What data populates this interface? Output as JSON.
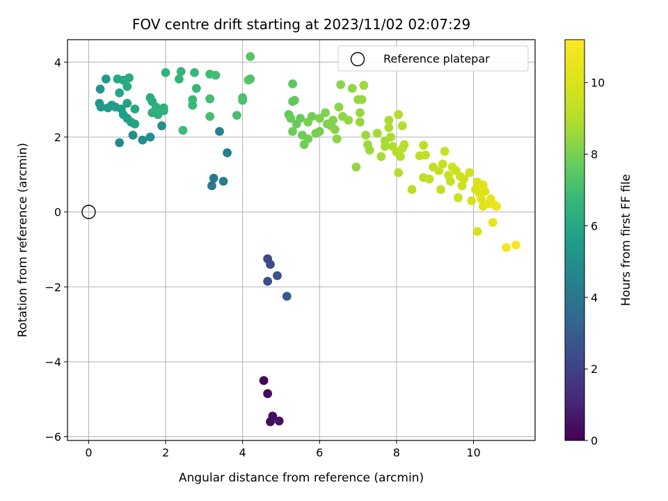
{
  "chart_data": {
    "type": "scatter",
    "title": "FOV centre drift starting at 2023/11/02 02:07:29",
    "xlabel": "Angular distance from reference (arcmin)",
    "ylabel": "Rotation from reference (arcmin)",
    "xlim": [
      -0.55,
      11.6
    ],
    "ylim": [
      -6.1,
      4.6
    ],
    "xticks": [
      0,
      2,
      4,
      6,
      8,
      10
    ],
    "yticks": [
      -6,
      -4,
      -2,
      0,
      2,
      4
    ],
    "grid": true,
    "legend": {
      "placement": "top-right",
      "entries": [
        "Reference platepar"
      ]
    },
    "reference": {
      "x": 0,
      "y": 0
    },
    "colorbar": {
      "label": "Hours from first FF file",
      "range": [
        0,
        11.2
      ],
      "ticks": [
        0,
        2,
        4,
        6,
        8,
        10
      ],
      "colormap": "viridis"
    },
    "series": [
      {
        "points": [
          [
            4.55,
            -4.5,
            0.1
          ],
          [
            4.65,
            -4.85,
            0.2
          ],
          [
            4.72,
            -5.6,
            0.3
          ],
          [
            4.78,
            -5.45,
            0.4
          ],
          [
            4.95,
            -5.58,
            0.5
          ],
          [
            4.65,
            -1.25,
            2.2
          ],
          [
            4.72,
            -1.4,
            2.3
          ],
          [
            4.65,
            -1.85,
            2.5
          ],
          [
            4.9,
            -1.7,
            2.6
          ],
          [
            5.15,
            -2.25,
            2.8
          ],
          [
            3.2,
            0.7,
            4.0
          ],
          [
            3.25,
            0.9,
            4.1
          ],
          [
            3.5,
            0.82,
            4.2
          ],
          [
            3.6,
            1.58,
            4.3
          ],
          [
            3.4,
            2.15,
            4.5
          ],
          [
            0.8,
            1.85,
            4.8
          ],
          [
            1.4,
            1.92,
            4.9
          ],
          [
            1.6,
            2.0,
            5.0
          ],
          [
            1.15,
            2.05,
            5.0
          ],
          [
            1.9,
            2.3,
            5.1
          ],
          [
            0.3,
            3.28,
            5.2
          ],
          [
            0.45,
            3.55,
            5.3
          ],
          [
            0.28,
            2.9,
            5.3
          ],
          [
            0.32,
            2.8,
            5.4
          ],
          [
            0.5,
            2.78,
            5.4
          ],
          [
            0.6,
            2.85,
            5.5
          ],
          [
            0.7,
            2.8,
            5.5
          ],
          [
            0.85,
            2.75,
            5.6
          ],
          [
            0.9,
            2.6,
            5.6
          ],
          [
            1.0,
            2.5,
            5.7
          ],
          [
            1.1,
            2.4,
            5.7
          ],
          [
            1.2,
            2.35,
            5.8
          ],
          [
            1.0,
            2.9,
            5.8
          ],
          [
            1.2,
            2.75,
            5.9
          ],
          [
            0.8,
            3.18,
            5.9
          ],
          [
            0.9,
            3.52,
            6.0
          ],
          [
            0.75,
            3.55,
            6.0
          ],
          [
            1.0,
            3.35,
            6.1
          ],
          [
            1.05,
            3.58,
            6.1
          ],
          [
            1.6,
            3.05,
            6.2
          ],
          [
            1.65,
            2.95,
            6.2
          ],
          [
            1.75,
            2.8,
            6.3
          ],
          [
            1.65,
            2.65,
            6.3
          ],
          [
            1.8,
            2.6,
            6.4
          ],
          [
            1.95,
            2.7,
            6.4
          ],
          [
            1.95,
            2.78,
            6.5
          ],
          [
            2.0,
            3.72,
            6.5
          ],
          [
            2.35,
            3.55,
            6.6
          ],
          [
            2.4,
            3.75,
            6.6
          ],
          [
            2.75,
            3.72,
            6.7
          ],
          [
            2.8,
            3.3,
            6.7
          ],
          [
            2.7,
            3.0,
            6.8
          ],
          [
            2.7,
            2.85,
            6.8
          ],
          [
            2.45,
            2.18,
            6.9
          ],
          [
            3.15,
            3.68,
            6.9
          ],
          [
            3.3,
            3.65,
            7.0
          ],
          [
            3.15,
            3.02,
            7.0
          ],
          [
            3.15,
            2.55,
            7.1
          ],
          [
            3.85,
            2.58,
            7.1
          ],
          [
            4.0,
            3.05,
            7.2
          ],
          [
            4.0,
            2.98,
            7.2
          ],
          [
            4.15,
            3.52,
            7.3
          ],
          [
            4.2,
            3.55,
            7.3
          ],
          [
            4.2,
            4.15,
            7.4
          ],
          [
            5.3,
            3.42,
            7.5
          ],
          [
            5.3,
            2.95,
            7.5
          ],
          [
            5.35,
            2.98,
            7.6
          ],
          [
            5.2,
            2.6,
            7.6
          ],
          [
            5.25,
            2.5,
            7.7
          ],
          [
            5.4,
            2.35,
            7.7
          ],
          [
            5.5,
            2.5,
            7.7
          ],
          [
            5.3,
            2.15,
            7.8
          ],
          [
            5.55,
            2.05,
            7.8
          ],
          [
            5.6,
            1.8,
            7.9
          ],
          [
            5.7,
            1.95,
            7.9
          ],
          [
            5.8,
            2.55,
            7.9
          ],
          [
            5.7,
            2.4,
            8.0
          ],
          [
            5.9,
            2.1,
            8.0
          ],
          [
            6.0,
            2.15,
            8.0
          ],
          [
            6.0,
            2.5,
            8.1
          ],
          [
            6.15,
            2.65,
            8.1
          ],
          [
            6.2,
            2.35,
            8.1
          ],
          [
            6.3,
            2.3,
            8.2
          ],
          [
            6.35,
            2.45,
            8.2
          ],
          [
            6.4,
            2.2,
            8.2
          ],
          [
            6.45,
            1.95,
            8.3
          ],
          [
            6.5,
            2.8,
            8.3
          ],
          [
            6.55,
            3.4,
            8.3
          ],
          [
            6.6,
            2.55,
            8.3
          ],
          [
            6.75,
            2.45,
            8.4
          ],
          [
            6.85,
            3.3,
            8.4
          ],
          [
            6.95,
            1.2,
            8.4
          ],
          [
            7.0,
            3.0,
            8.4
          ],
          [
            7.05,
            2.65,
            8.5
          ],
          [
            7.1,
            3.0,
            8.5
          ],
          [
            7.05,
            2.4,
            8.5
          ],
          [
            7.15,
            3.38,
            8.6
          ],
          [
            7.2,
            2.05,
            8.6
          ],
          [
            7.25,
            1.8,
            8.6
          ],
          [
            7.3,
            1.65,
            8.6
          ],
          [
            7.5,
            2.1,
            8.7
          ],
          [
            7.6,
            1.48,
            8.7
          ],
          [
            7.7,
            1.9,
            8.7
          ],
          [
            7.7,
            1.75,
            8.8
          ],
          [
            7.8,
            2.45,
            8.8
          ],
          [
            7.85,
            2.0,
            8.8
          ],
          [
            7.8,
            2.25,
            8.8
          ],
          [
            7.9,
            1.75,
            8.9
          ],
          [
            8.05,
            2.6,
            8.9
          ],
          [
            8.0,
            1.6,
            8.9
          ],
          [
            8.05,
            1.05,
            9.0
          ],
          [
            8.1,
            1.48,
            9.0
          ],
          [
            8.15,
            2.3,
            9.0
          ],
          [
            8.15,
            1.7,
            9.1
          ],
          [
            8.2,
            1.8,
            9.1
          ],
          [
            8.4,
            0.6,
            9.1
          ],
          [
            8.6,
            1.5,
            9.2
          ],
          [
            8.7,
            1.78,
            9.2
          ],
          [
            8.7,
            0.92,
            9.2
          ],
          [
            8.75,
            1.52,
            9.3
          ],
          [
            8.85,
            0.88,
            9.3
          ],
          [
            8.95,
            1.2,
            9.3
          ],
          [
            9.1,
            1.1,
            9.4
          ],
          [
            9.15,
            0.6,
            9.4
          ],
          [
            9.2,
            1.28,
            9.4
          ],
          [
            9.25,
            1.62,
            9.5
          ],
          [
            9.35,
            0.98,
            9.5
          ],
          [
            9.4,
            0.82,
            9.5
          ],
          [
            9.45,
            1.2,
            9.6
          ],
          [
            9.55,
            1.1,
            9.6
          ],
          [
            9.6,
            0.38,
            9.6
          ],
          [
            9.65,
            0.95,
            9.7
          ],
          [
            9.7,
            0.7,
            9.7
          ],
          [
            9.75,
            0.88,
            9.7
          ],
          [
            9.9,
            1.05,
            9.8
          ],
          [
            9.95,
            0.3,
            9.8
          ],
          [
            10.05,
            0.6,
            9.9
          ],
          [
            10.1,
            -0.52,
            9.9
          ],
          [
            10.1,
            0.8,
            10.0
          ],
          [
            10.15,
            0.5,
            10.0
          ],
          [
            10.2,
            0.35,
            10.1
          ],
          [
            10.25,
            0.72,
            10.1
          ],
          [
            10.25,
            0.15,
            10.2
          ],
          [
            10.3,
            0.55,
            10.2
          ],
          [
            10.4,
            0.22,
            10.3
          ],
          [
            10.45,
            0.35,
            10.4
          ],
          [
            10.5,
            -0.28,
            10.5
          ],
          [
            10.55,
            0.18,
            10.6
          ],
          [
            10.6,
            0.15,
            10.7
          ],
          [
            10.85,
            -0.95,
            10.9
          ],
          [
            11.1,
            -0.88,
            11.0
          ]
        ]
      }
    ]
  }
}
